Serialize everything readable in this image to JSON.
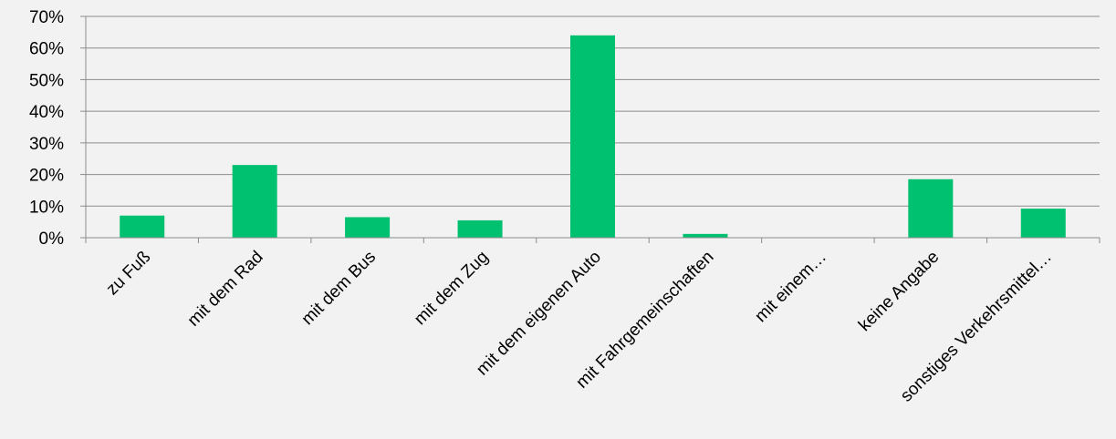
{
  "chart_data": {
    "type": "bar",
    "categories": [
      "zu Fuß",
      "mit dem Rad",
      "mit dem Bus",
      "mit dem Zug",
      "mit dem eigenen Auto",
      "mit Fahrgemeinschaften",
      "mit einem…",
      "keine Angabe",
      "sonstiges Verkehrsmittel…"
    ],
    "values": [
      7,
      23,
      6.5,
      5.5,
      64,
      1.2,
      0,
      18.5,
      9.2
    ],
    "y_ticks": [
      "0%",
      "10%",
      "20%",
      "30%",
      "40%",
      "50%",
      "60%",
      "70%"
    ],
    "ylim": [
      0,
      70
    ],
    "grid": true,
    "bar_color": "#00c170",
    "title": "",
    "xlabel": "",
    "ylabel": ""
  }
}
